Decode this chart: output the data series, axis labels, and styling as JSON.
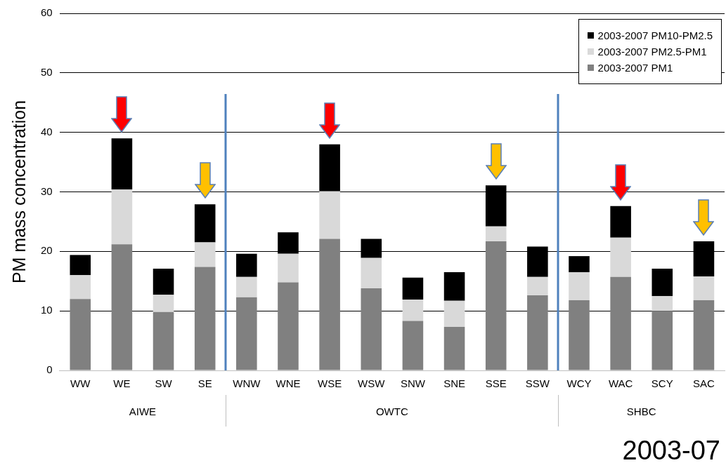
{
  "chart_data": {
    "type": "bar",
    "stacked": true,
    "ylabel": "PM mass concentration",
    "categories": [
      "WW",
      "WE",
      "SW",
      "SE",
      "WNW",
      "WNE",
      "WSE",
      "WSW",
      "SNW",
      "SNE",
      "SSE",
      "SSW",
      "WCY",
      "WAC",
      "SCY",
      "SAC"
    ],
    "series": [
      {
        "name": "2003-2007 PM1",
        "color": "#808080",
        "values": [
          12.0,
          21.2,
          9.8,
          17.4,
          12.3,
          14.8,
          22.1,
          13.8,
          8.3,
          7.3,
          21.7,
          12.6,
          11.8,
          15.7,
          10.0,
          11.8
        ]
      },
      {
        "name": "2003-2007 PM2.5-PM1",
        "color": "#d9d9d9",
        "values": [
          4.0,
          9.2,
          2.9,
          4.1,
          3.4,
          4.8,
          8.0,
          5.1,
          3.6,
          4.4,
          2.5,
          3.1,
          4.7,
          6.6,
          2.5,
          4.0
        ]
      },
      {
        "name": "2003-2007 PM10-PM2.5",
        "color": "#000000",
        "values": [
          3.4,
          8.6,
          4.4,
          6.4,
          3.9,
          3.6,
          7.9,
          3.2,
          3.7,
          4.8,
          6.9,
          5.1,
          2.7,
          5.3,
          4.6,
          5.9
        ]
      }
    ],
    "ylim": [
      0,
      60
    ],
    "yticks": [
      0,
      10,
      20,
      30,
      40,
      50,
      60
    ],
    "grid": "y",
    "legend": "top right",
    "annotations": [
      "AIWE",
      "OWTC",
      "SHBC",
      "2003-07"
    ]
  }
}
